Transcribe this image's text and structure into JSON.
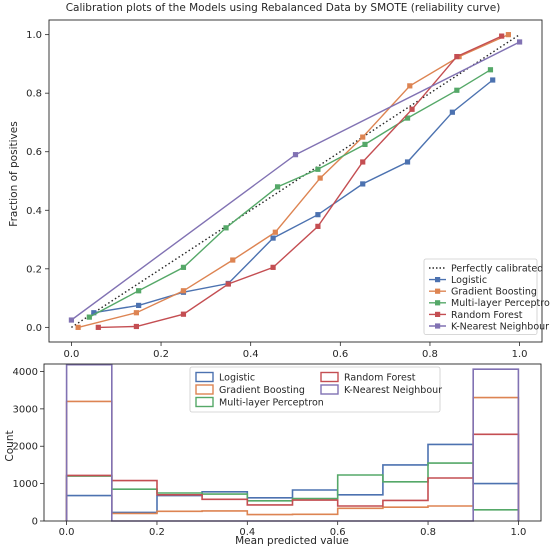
{
  "figure": {
    "title": "Calibration plots of the Models using Rebalanced Data by SMOTE (reliability curve)"
  },
  "chart_data": [
    {
      "type": "line",
      "title": "Calibration plots of the Models using Rebalanced Data by SMOTE (reliability curve)",
      "xlabel": "",
      "ylabel": "Fraction of positives",
      "xlim": [
        -0.05,
        1.05
      ],
      "ylim": [
        -0.05,
        1.05
      ],
      "xticks": [
        "0.0",
        "0.2",
        "0.4",
        "0.6",
        "0.8",
        "1.0"
      ],
      "yticks": [
        "0.0",
        "0.2",
        "0.4",
        "0.6",
        "0.8",
        "1.0"
      ],
      "legend_position": "lower-right",
      "reference_line": {
        "name": "Perfectly calibrated",
        "x": [
          0,
          1
        ],
        "y": [
          0,
          1
        ],
        "style": "dotted",
        "color": "#262626"
      },
      "series": [
        {
          "name": "Logistic",
          "color": "#4c72b0",
          "x": [
            0.05,
            0.15,
            0.25,
            0.35,
            0.45,
            0.55,
            0.65,
            0.75,
            0.85,
            0.94
          ],
          "y": [
            0.05,
            0.075,
            0.12,
            0.15,
            0.305,
            0.385,
            0.49,
            0.565,
            0.735,
            0.845
          ]
        },
        {
          "name": "Gradient Boosting",
          "color": "#dd8452",
          "x": [
            0.015,
            0.145,
            0.25,
            0.36,
            0.455,
            0.555,
            0.65,
            0.755,
            0.865,
            0.975
          ],
          "y": [
            0.0,
            0.05,
            0.125,
            0.23,
            0.325,
            0.51,
            0.65,
            0.825,
            0.925,
            1.0
          ]
        },
        {
          "name": "Multi-layer Perceptron",
          "color": "#55a868",
          "x": [
            0.04,
            0.15,
            0.25,
            0.345,
            0.46,
            0.55,
            0.655,
            0.75,
            0.86,
            0.935
          ],
          "y": [
            0.035,
            0.125,
            0.205,
            0.34,
            0.48,
            0.54,
            0.625,
            0.715,
            0.81,
            0.88
          ]
        },
        {
          "name": "Random Forest",
          "color": "#c44e52",
          "x": [
            0.06,
            0.145,
            0.25,
            0.35,
            0.45,
            0.55,
            0.65,
            0.76,
            0.86,
            0.96
          ],
          "y": [
            0.0,
            0.003,
            0.045,
            0.148,
            0.205,
            0.345,
            0.565,
            0.745,
            0.925,
            0.995
          ]
        },
        {
          "name": "K-Nearest Neighbour",
          "color": "#8172b3",
          "x": [
            0.0,
            0.5,
            1.0
          ],
          "y": [
            0.025,
            0.59,
            0.975
          ]
        }
      ]
    },
    {
      "type": "bar",
      "histtype": "step",
      "title": "",
      "xlabel": "Mean predicted value",
      "ylabel": "Count",
      "xlim": [
        -0.05,
        1.05
      ],
      "ylim": [
        0,
        4200
      ],
      "xticks": [
        "0.0",
        "0.2",
        "0.4",
        "0.6",
        "0.8",
        "1.0"
      ],
      "yticks": [
        "0",
        "1000",
        "2000",
        "3000",
        "4000"
      ],
      "legend_position": "upper-center",
      "legend_columns": 2,
      "bin_edges": [
        0.0,
        0.1,
        0.2,
        0.3,
        0.4,
        0.5,
        0.6,
        0.7,
        0.8,
        0.9,
        1.0
      ],
      "series": [
        {
          "name": "Logistic",
          "color": "#4c72b0",
          "values": [
            680,
            230,
            680,
            780,
            620,
            830,
            700,
            1500,
            2050,
            1000
          ]
        },
        {
          "name": "Gradient Boosting",
          "color": "#dd8452",
          "values": [
            3200,
            200,
            260,
            270,
            170,
            180,
            340,
            370,
            400,
            3300
          ]
        },
        {
          "name": "Multi-layer Perceptron",
          "color": "#55a868",
          "values": [
            1200,
            850,
            750,
            720,
            540,
            600,
            1230,
            1050,
            1550,
            300
          ]
        },
        {
          "name": "Random Forest",
          "color": "#c44e52",
          "values": [
            1220,
            1080,
            700,
            580,
            430,
            560,
            400,
            550,
            1150,
            2320
          ]
        },
        {
          "name": "K-Nearest Neighbour",
          "color": "#8172b3",
          "values": [
            4180,
            0,
            0,
            0,
            0,
            0,
            0,
            0,
            0,
            4060
          ]
        }
      ]
    }
  ]
}
